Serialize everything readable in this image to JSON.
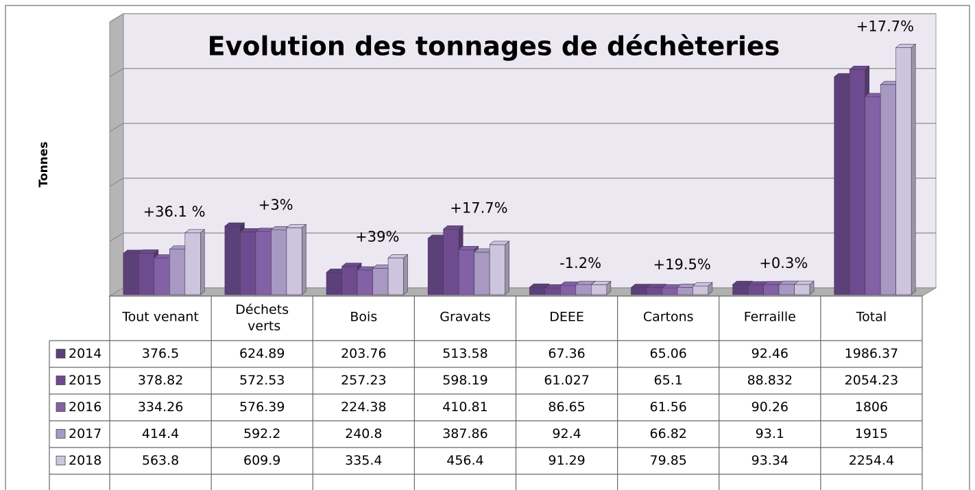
{
  "chart_data": {
    "type": "bar3d",
    "title": "Evolution des tonnages de déchèteries",
    "y_label": "Tonnes",
    "categories": [
      "Tout venant",
      "Déchets verts",
      "Bois",
      "Gravats",
      "DEEE",
      "Cartons",
      "Ferraille",
      "Total"
    ],
    "series": [
      {
        "name": "2014",
        "color": "#5c4079",
        "values": [
          376.5,
          624.89,
          203.76,
          513.58,
          67.36,
          65.06,
          92.46,
          1986.37
        ]
      },
      {
        "name": "2015",
        "color": "#6d4b8e",
        "values": [
          378.82,
          572.53,
          257.23,
          598.19,
          61.027,
          65.1,
          88.832,
          2054.23
        ]
      },
      {
        "name": "2016",
        "color": "#8261a6",
        "values": [
          334.26,
          576.39,
          224.38,
          410.81,
          86.65,
          61.56,
          90.26,
          1806
        ]
      },
      {
        "name": "2017",
        "color": "#a799c2",
        "values": [
          414.4,
          592.2,
          240.8,
          387.86,
          92.4,
          66.82,
          93.1,
          1915
        ]
      },
      {
        "name": "2018",
        "color": "#cdc5de",
        "values": [
          563.8,
          609.9,
          335.4,
          456.4,
          91.29,
          79.85,
          93.34,
          2254.4
        ]
      }
    ],
    "annotations": [
      "+36.1 %",
      "+3%",
      "+39%",
      "+17.7%",
      "-1.2%",
      "+19.5%",
      "+0.3%",
      "+17.7%"
    ],
    "ylim": [
      0,
      2500
    ],
    "yticks": [
      0,
      500,
      1000,
      1500,
      2000,
      2500
    ],
    "grid": true
  }
}
